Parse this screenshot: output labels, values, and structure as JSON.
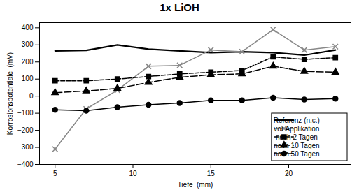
{
  "chart_data": {
    "type": "line",
    "title": "1x LiOH",
    "xlabel": "Tiefe  (mm)",
    "ylabel": "Korrosionspotentiale  (mV)",
    "x": [
      5,
      7,
      9,
      11,
      13,
      15,
      17,
      19,
      21,
      23
    ],
    "xlim": [
      4,
      24
    ],
    "xticks": [
      5,
      10,
      15,
      20
    ],
    "ylim": [
      -400,
      430
    ],
    "yticks": [
      -400,
      -300,
      -200,
      -100,
      0,
      100,
      200,
      300,
      400
    ],
    "grid": false,
    "legend": "lower right",
    "series": [
      {
        "name": "Referenz (n.c.)",
        "color": "#000000",
        "line_style": "solid",
        "values": [
          265,
          268,
          300,
          275,
          265,
          255,
          260,
          255,
          240,
          270
        ]
      },
      {
        "name": "vor Applikation",
        "color": "#888888",
        "line_style": "solid",
        "marker": "x",
        "values": [
          -310,
          -75,
          35,
          175,
          180,
          270,
          260,
          390,
          270,
          290
        ]
      },
      {
        "name": "nach 2 Tagen",
        "color": "#000000",
        "line_style": "dashed",
        "marker": "square",
        "values": [
          90,
          90,
          100,
          115,
          130,
          140,
          150,
          230,
          215,
          225
        ]
      },
      {
        "name": "nach 10 Tagen",
        "color": "#000000",
        "line_style": "longdashed",
        "marker": "triangle",
        "values": [
          20,
          30,
          45,
          80,
          110,
          125,
          130,
          175,
          145,
          140
        ]
      },
      {
        "name": "nach 50 Tagen",
        "color": "#000000",
        "line_style": "solid",
        "marker": "circle",
        "values": [
          -80,
          -85,
          -65,
          -50,
          -40,
          -25,
          -25,
          -10,
          -20,
          -15
        ]
      }
    ]
  }
}
